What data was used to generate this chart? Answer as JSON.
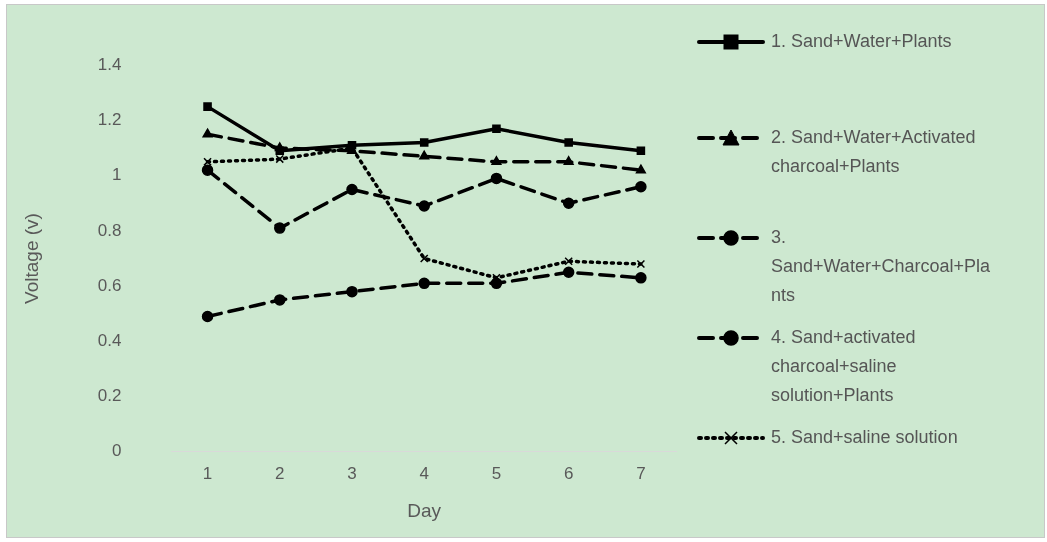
{
  "chart_data": {
    "type": "line",
    "xlabel": "Day",
    "ylabel": "Voltage (v)",
    "categories": [
      "1",
      "2",
      "3",
      "4",
      "5",
      "6",
      "7"
    ],
    "ylim": [
      0,
      1.4
    ],
    "yticks": [
      0,
      0.2,
      0.4,
      0.6,
      0.8,
      1,
      1.2,
      1.4
    ],
    "grid": false,
    "legend": "right",
    "series": [
      {
        "name": "1. Sand+Water+Plants",
        "color": "#000000",
        "marker": "square",
        "line_style": "solid",
        "values": [
          1.25,
          1.09,
          1.11,
          1.12,
          1.17,
          1.12,
          1.09
        ]
      },
      {
        "name": "2. Sand+Water+Activated charcoal+Plants",
        "color": "#000000",
        "marker": "triangle",
        "line_style": "dashed",
        "values": [
          1.15,
          1.1,
          1.09,
          1.07,
          1.05,
          1.05,
          1.02
        ]
      },
      {
        "name": "3. Sand+Water+Charcoal+Plants",
        "color": "#000000",
        "marker": "circle",
        "line_style": "dashed",
        "values": [
          1.02,
          0.81,
          0.95,
          0.89,
          0.99,
          0.9,
          0.96
        ]
      },
      {
        "name": "4. Sand+activated charcoal+saline solution+Plants",
        "color": "#000000",
        "marker": "circle",
        "line_style": "dashed",
        "values": [
          0.49,
          0.55,
          0.58,
          0.61,
          0.61,
          0.65,
          0.63
        ]
      },
      {
        "name": "5. Sand+saline solution",
        "color": "#000000",
        "marker": "cross",
        "line_style": "dotted",
        "values": [
          1.05,
          1.06,
          1.1,
          0.7,
          0.63,
          0.69,
          0.68
        ]
      }
    ]
  }
}
